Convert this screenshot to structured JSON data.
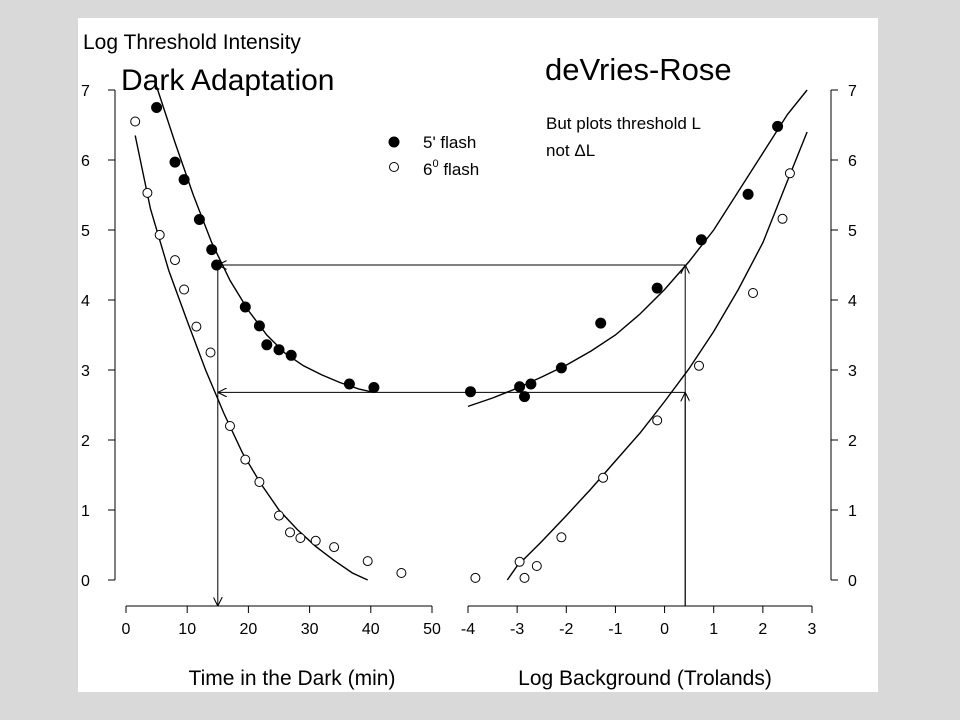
{
  "slide": {
    "y_axis_title": "Log Threshold Intensity",
    "left_title": "Dark Adaptation",
    "right_title": "deVries-Rose",
    "note_line1": "But plots threshold L",
    "note_line2": "not ΔL",
    "legend_filled": "5' flash",
    "legend_open_base": "6",
    "legend_open_sup": "0",
    "legend_open_rest": " flash"
  },
  "chart_data": [
    {
      "type": "scatter",
      "panel": "left",
      "title": "Dark Adaptation",
      "xlabel": "Time in the Dark (min)",
      "ylabel": "Log Threshold Intensity",
      "xlim": [
        0,
        50
      ],
      "ylim": [
        0,
        7
      ],
      "xticks": [
        0,
        10,
        20,
        30,
        40,
        50
      ],
      "yticks": [
        0,
        1,
        2,
        3,
        4,
        5,
        6,
        7
      ],
      "legend": "top-right",
      "series": [
        {
          "name": "5' flash",
          "marker": "filled-circle",
          "x": [
            5,
            8,
            9.5,
            12,
            14,
            14.8,
            19.5,
            21.8,
            23,
            25,
            27,
            36.5,
            40.5
          ],
          "y": [
            6.75,
            5.97,
            5.72,
            5.15,
            4.72,
            4.5,
            3.9,
            3.63,
            3.36,
            3.29,
            3.21,
            2.8,
            2.75
          ],
          "fit_x": [
            5,
            8,
            11,
            14,
            17,
            20,
            23,
            26,
            29,
            32,
            35,
            38,
            40.5
          ],
          "fit_y": [
            7.05,
            6.25,
            5.5,
            4.82,
            4.28,
            3.85,
            3.5,
            3.24,
            3.06,
            2.93,
            2.82,
            2.73,
            2.68
          ]
        },
        {
          "name": "6° flash",
          "marker": "open-circle",
          "x": [
            1.5,
            3.5,
            5.5,
            8,
            9.5,
            11.5,
            13.8,
            17,
            19.5,
            21.8,
            25,
            26.8,
            28.5,
            31,
            34,
            39.5,
            45
          ],
          "y": [
            6.55,
            5.53,
            4.93,
            4.57,
            4.15,
            3.62,
            3.25,
            2.2,
            1.72,
            1.4,
            0.92,
            0.68,
            0.6,
            0.56,
            0.47,
            0.27,
            0.1
          ],
          "fit_x": [
            1.5,
            4,
            7,
            10,
            13,
            16,
            19,
            22,
            25,
            28,
            31,
            34,
            37,
            39.5
          ],
          "fit_y": [
            6.35,
            5.3,
            4.42,
            3.7,
            3.0,
            2.38,
            1.82,
            1.38,
            1.0,
            0.72,
            0.48,
            0.28,
            0.1,
            0.0
          ]
        }
      ]
    },
    {
      "type": "scatter",
      "panel": "right",
      "title": "deVries-Rose",
      "xlabel": "Log Background (Trolands)",
      "xlim": [
        -4,
        3
      ],
      "ylim": [
        0,
        7
      ],
      "xticks": [
        -4,
        -3,
        -2,
        -1,
        0,
        1,
        2,
        3
      ],
      "yticks": [
        0,
        1,
        2,
        3,
        4,
        5,
        6,
        7
      ],
      "series": [
        {
          "name": "5' flash",
          "marker": "filled-circle",
          "x": [
            -3.95,
            -2.95,
            -2.85,
            -2.72,
            -2.1,
            -1.3,
            -0.15,
            0.75,
            1.7,
            2.3
          ],
          "y": [
            2.69,
            2.76,
            2.62,
            2.8,
            3.03,
            3.67,
            4.17,
            4.86,
            5.51,
            6.48
          ],
          "fit_x": [
            -4,
            -3.5,
            -3,
            -2.5,
            -2,
            -1.5,
            -1,
            -0.5,
            0,
            0.5,
            1,
            1.5,
            2,
            2.5,
            2.9
          ],
          "fit_y": [
            2.48,
            2.6,
            2.74,
            2.9,
            3.07,
            3.27,
            3.5,
            3.8,
            4.15,
            4.55,
            5.0,
            5.55,
            6.1,
            6.65,
            7.0
          ]
        },
        {
          "name": "6° flash",
          "marker": "open-circle",
          "x": [
            -3.85,
            -2.95,
            -2.85,
            -2.6,
            -2.1,
            -1.25,
            -0.15,
            0.7,
            1.8,
            2.4,
            2.55
          ],
          "y": [
            0.03,
            0.26,
            0.03,
            0.2,
            0.61,
            1.46,
            2.28,
            3.06,
            4.1,
            5.16,
            5.81
          ],
          "fit_x": [
            -3.2,
            -3,
            -2.5,
            -2,
            -1.5,
            -1,
            -0.5,
            0,
            0.5,
            1,
            1.5,
            2,
            2.5,
            2.9
          ],
          "fit_y": [
            0.0,
            0.2,
            0.55,
            0.92,
            1.3,
            1.7,
            2.1,
            2.55,
            3.02,
            3.55,
            4.15,
            4.82,
            5.7,
            6.4
          ]
        }
      ],
      "arrows": [
        {
          "from_right_x": 0.42,
          "level_y": 4.5,
          "to_left_x": 15
        },
        {
          "from_right_x": 0.42,
          "level_y": 2.68,
          "to_left_x": 15
        }
      ]
    }
  ]
}
